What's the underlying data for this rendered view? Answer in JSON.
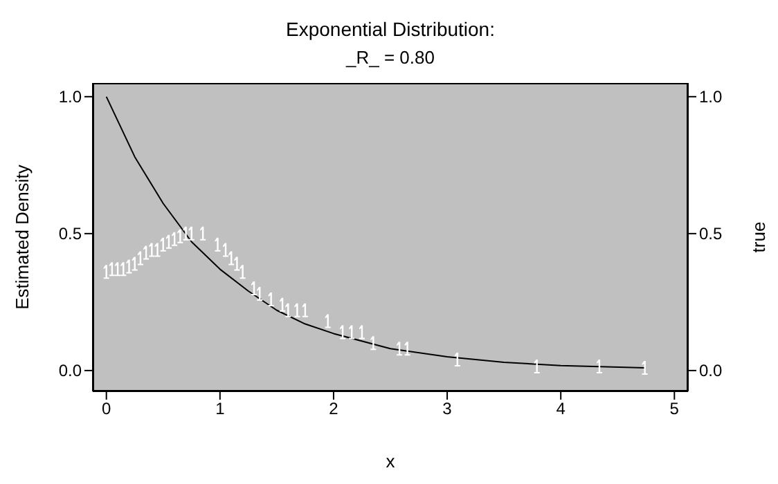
{
  "chart_data": {
    "type": "scatter",
    "title": "Exponential Distribution:",
    "subtitle": "_R_ = 0.80",
    "xlabel": "x",
    "ylabel": "Estimated Density",
    "y2label": "true",
    "xlim": [
      -0.12,
      5.12
    ],
    "xticks": [
      0,
      1,
      2,
      3,
      4,
      5
    ],
    "ylim": [
      -0.076,
      1.05
    ],
    "yticks": [
      {
        "value": 0,
        "label": "0.0"
      },
      {
        "value": 0.5,
        "label": "0.5"
      },
      {
        "value": 1,
        "label": "1.0"
      }
    ],
    "y2lim": [
      -0.076,
      1.05
    ],
    "y2ticks": [
      {
        "value": 0,
        "label": "0.0"
      },
      {
        "value": 0.5,
        "label": "0.5"
      },
      {
        "value": 1,
        "label": "1.0"
      }
    ],
    "grid": false,
    "series": [
      {
        "color": "#ffffff",
        "x": [
          0,
          0.05,
          0.1,
          0.15,
          0.2,
          0.25,
          0.3,
          0.35,
          0.4,
          0.45,
          0.5,
          0.55,
          0.6,
          0.65,
          0.7,
          0.75,
          0.85,
          0.98,
          1.05,
          1.1,
          1.15,
          1.2,
          1.3,
          1.35,
          1.45,
          1.55,
          1.6,
          1.68,
          1.75,
          1.95,
          2.08,
          2.16,
          2.25,
          2.35,
          2.58,
          2.65,
          3.09,
          3.79,
          4.34,
          4.74
        ],
        "values": [
          0.36,
          0.37,
          0.37,
          0.37,
          0.38,
          0.39,
          0.41,
          0.43,
          0.44,
          0.44,
          0.46,
          0.47,
          0.48,
          0.49,
          0.5,
          0.5,
          0.5,
          0.46,
          0.44,
          0.41,
          0.39,
          0.36,
          0.3,
          0.28,
          0.26,
          0.24,
          0.22,
          0.22,
          0.22,
          0.18,
          0.14,
          0.14,
          0.14,
          0.1,
          0.08,
          0.08,
          0.04,
          0.015,
          0.015,
          0.01
        ]
      },
      {
        "type": "line",
        "color": "#000000",
        "x": [
          0,
          0.25,
          0.5,
          0.75,
          1,
          1.25,
          1.5,
          1.75,
          2,
          2.5,
          3,
          3.5,
          4,
          4.74
        ],
        "values": [
          1,
          0.78,
          0.61,
          0.47,
          0.37,
          0.29,
          0.22,
          0.17,
          0.135,
          0.08,
          0.05,
          0.03,
          0.018,
          0.01
        ]
      }
    ]
  }
}
